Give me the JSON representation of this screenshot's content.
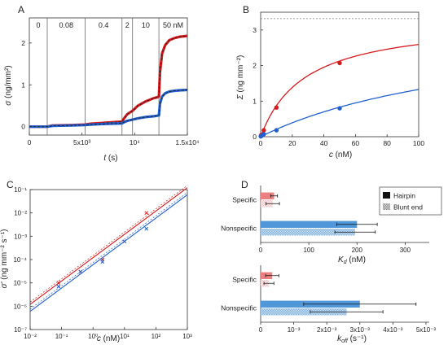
{
  "panels": {
    "A": "A",
    "B": "B",
    "C": "C",
    "D": "D"
  },
  "colors": {
    "red": "#d7191c",
    "blue": "#1f5fd0",
    "red_light": "#ec8080",
    "blue_light": "#4f97d8",
    "hatch_red": "#f2b6b6",
    "hatch_blue": "#9cc3e6",
    "axis": "#333333",
    "fit_dash": "#222222"
  },
  "chart_data": [
    {
      "panel": "A",
      "type": "line",
      "xlabel_main": "t",
      "xlabel_unit": " (s)",
      "ylabel_main": "σ",
      "ylabel_unit": " (ng/mm²)",
      "xlim": [
        0,
        15000
      ],
      "ylim": [
        -0.2,
        2.6
      ],
      "xticks": [
        {
          "v": 0,
          "label": "0"
        },
        {
          "v": 5000,
          "label": "5x10³"
        },
        {
          "v": 10000,
          "label": "10⁴"
        },
        {
          "v": 15000,
          "label": "1.5x10⁴"
        }
      ],
      "yticks": [
        {
          "v": 0,
          "label": "0"
        },
        {
          "v": 1,
          "label": "1"
        },
        {
          "v": 2,
          "label": "2"
        }
      ],
      "stage_bounds": [
        0,
        1700,
        5300,
        8800,
        9800,
        12300,
        15000
      ],
      "stage_labels": [
        "0",
        "0.08",
        "0.4",
        "2",
        "10",
        "50 nM"
      ],
      "series": [
        {
          "color_key": "red",
          "x": [
            0,
            1700,
            2200,
            4000,
            5300,
            5800,
            7500,
            8800,
            9000,
            9300,
            9800,
            10300,
            11000,
            11800,
            12100,
            12300,
            12400,
            12600,
            12900,
            13300,
            13800,
            14300,
            15000
          ],
          "y": [
            0,
            0,
            0.03,
            0.04,
            0.05,
            0.07,
            0.1,
            0.12,
            0.2,
            0.3,
            0.38,
            0.5,
            0.6,
            0.68,
            0.7,
            0.72,
            1.3,
            1.75,
            1.95,
            2.07,
            2.12,
            2.15,
            2.17
          ]
        },
        {
          "color_key": "blue",
          "x": [
            0,
            1700,
            2200,
            4000,
            5300,
            5800,
            7500,
            8800,
            9000,
            9300,
            9800,
            10300,
            11000,
            11800,
            12100,
            12300,
            12400,
            12600,
            12900,
            13300,
            13800,
            14300,
            15000
          ],
          "y": [
            0,
            0,
            0.02,
            0.03,
            0.04,
            0.05,
            0.07,
            0.08,
            0.11,
            0.14,
            0.17,
            0.2,
            0.23,
            0.25,
            0.26,
            0.27,
            0.55,
            0.72,
            0.8,
            0.84,
            0.86,
            0.87,
            0.88
          ]
        }
      ]
    },
    {
      "panel": "B",
      "type": "scatter",
      "xlabel_main": "c",
      "xlabel_unit": " (nM)",
      "ylabel_main": "Σ",
      "ylabel_unit": " (ng mm⁻²)",
      "xlim": [
        0,
        100
      ],
      "ylim": [
        0,
        3.5
      ],
      "xticks": [
        0,
        20,
        40,
        60,
        80,
        100
      ],
      "yticks": [
        0,
        1,
        2,
        3
      ],
      "saturation_line": 3.32,
      "series": [
        {
          "color_key": "red",
          "x": [
            0.08,
            0.4,
            2,
            10,
            50
          ],
          "y": [
            0.02,
            0.05,
            0.18,
            0.82,
            2.07
          ],
          "fit_smax": 3.32,
          "fit_kd": 28
        },
        {
          "color_key": "blue",
          "x": [
            0.08,
            0.4,
            2,
            10,
            50
          ],
          "y": [
            0.01,
            0.02,
            0.07,
            0.18,
            0.8
          ],
          "fit_smax": 3.32,
          "fit_kd": 150
        }
      ]
    },
    {
      "panel": "C",
      "type": "scatter",
      "xlabel_main": "c",
      "xlabel_unit": " (nM)",
      "ylabel_main": "σ'",
      "ylabel_unit": " (ng mm⁻² s⁻¹)",
      "xscale": "log",
      "yscale": "log",
      "xlim": [
        0.01,
        1000
      ],
      "ylim": [
        1e-07,
        0.1
      ],
      "xticks": [
        {
          "v": 0.01,
          "label": "10⁻²"
        },
        {
          "v": 0.1,
          "label": "10⁻¹"
        },
        {
          "v": 1,
          "label": "10⁰"
        },
        {
          "v": 10,
          "label": "10¹"
        },
        {
          "v": 100,
          "label": "10²"
        },
        {
          "v": 1000,
          "label": "10³"
        }
      ],
      "yticks": [
        {
          "v": 1e-07,
          "label": "10⁻⁷"
        },
        {
          "v": 1e-06,
          "label": "10⁻⁶"
        },
        {
          "v": 1e-05,
          "label": "10⁻⁵"
        },
        {
          "v": 0.0001,
          "label": "10⁻⁴"
        },
        {
          "v": 0.001,
          "label": "10⁻³"
        },
        {
          "v": 0.01,
          "label": "10⁻²"
        },
        {
          "v": 0.1,
          "label": "10⁻¹"
        }
      ],
      "series": [
        {
          "color_key": "red",
          "x": [
            0.08,
            0.4,
            2,
            10,
            50
          ],
          "y": [
            1e-05,
            3e-05,
            0.0001,
            0.0006,
            0.01
          ],
          "fit_x": [
            0.01,
            1000
          ],
          "fit_y": [
            1.2e-06,
            0.12
          ]
        },
        {
          "color_key": "blue",
          "x": [
            0.08,
            0.4,
            2,
            10,
            50
          ],
          "y": [
            7e-06,
            3e-05,
            8e-05,
            0.0006,
            0.0021
          ],
          "fit_x": [
            0.01,
            1000
          ],
          "fit_y": [
            6e-07,
            0.06
          ]
        }
      ]
    },
    {
      "panel": "D1",
      "type": "bar",
      "orientation": "horizontal",
      "xlabel_main": "K",
      "xlabel_sub": "d",
      "xlabel_unit": " (nM)",
      "xlim": [
        0,
        350
      ],
      "xticks": [
        {
          "v": 0,
          "label": "0"
        },
        {
          "v": 100,
          "label": "100"
        },
        {
          "v": 200,
          "label": "200"
        },
        {
          "v": 300,
          "label": "300"
        }
      ],
      "categories": [
        "Specific",
        "Nonspecific"
      ],
      "series": [
        {
          "name": "Hairpin",
          "style": "solid",
          "values": [
            28,
            200
          ],
          "errors": [
            7,
            42
          ]
        },
        {
          "name": "Blunt end",
          "style": "hatched",
          "values": [
            25,
            196
          ],
          "errors": [
            14,
            42
          ]
        }
      ]
    },
    {
      "panel": "D2",
      "type": "bar",
      "orientation": "horizontal",
      "xlabel_main": "k",
      "xlabel_sub": "off",
      "xlabel_unit": " (s⁻¹)",
      "xlim": [
        0,
        0.0051
      ],
      "xticks": [
        {
          "v": 0,
          "label": "0"
        },
        {
          "v": 0.001,
          "label": "10⁻³"
        },
        {
          "v": 0.002,
          "label": "2x10⁻³"
        },
        {
          "v": 0.003,
          "label": "3x10⁻³"
        },
        {
          "v": 0.004,
          "label": "4x10⁻³"
        },
        {
          "v": 0.005,
          "label": "5x10⁻³"
        }
      ],
      "categories": [
        "Specific",
        "Nonspecific"
      ],
      "series": [
        {
          "name": "Hairpin",
          "style": "solid",
          "values": [
            0.00035,
            0.003
          ],
          "errors": [
            0.0002,
            0.0017
          ]
        },
        {
          "name": "Blunt end",
          "style": "hatched",
          "values": [
            0.00025,
            0.0026
          ],
          "errors": [
            0.00015,
            0.0011
          ]
        }
      ]
    }
  ]
}
